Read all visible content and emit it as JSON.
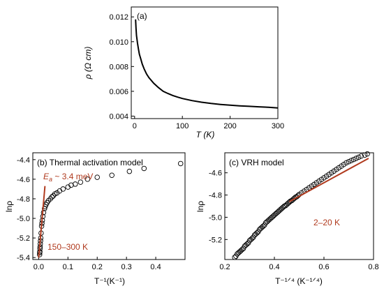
{
  "chart_data": [
    {
      "type": "line",
      "panel_label": "(a)",
      "xlabel": "T (K)",
      "ylabel": "ρ (Ω cm)",
      "xlim": [
        -7,
        300
      ],
      "ylim": [
        0.0038,
        0.0128
      ],
      "xticks": [
        0,
        100,
        200,
        300
      ],
      "xtick_labels": [
        "0",
        "100",
        "200",
        "300"
      ],
      "yticks": [
        0.004,
        0.006,
        0.008,
        0.01,
        0.012
      ],
      "ytick_labels": [
        "0.004",
        "0.006",
        "0.008",
        "0.010",
        "0.012"
      ],
      "color": "#000000",
      "series": [
        {
          "x": [
            2,
            3,
            4,
            6,
            8,
            10,
            13,
            16,
            20,
            25,
            30,
            40,
            50,
            60,
            70,
            80,
            90,
            100,
            120,
            140,
            160,
            180,
            200,
            220,
            240,
            260,
            280,
            300
          ],
          "y": [
            0.0118,
            0.0111,
            0.0105,
            0.0099,
            0.0094,
            0.009,
            0.0086,
            0.0082,
            0.0078,
            0.0074,
            0.0071,
            0.00665,
            0.0063,
            0.006,
            0.00582,
            0.00566,
            0.00553,
            0.00542,
            0.00525,
            0.00512,
            0.00502,
            0.00494,
            0.00488,
            0.00483,
            0.00479,
            0.00475,
            0.00471,
            0.00466
          ]
        }
      ]
    },
    {
      "type": "scatter",
      "panel_label": "(b) Thermal activation model",
      "xlabel": "T⁻¹(K⁻¹)",
      "ylabel": "lnρ",
      "xlim": [
        -0.02,
        0.5
      ],
      "ylim": [
        -5.42,
        -4.33
      ],
      "xticks": [
        0.0,
        0.1,
        0.2,
        0.3,
        0.4
      ],
      "xtick_labels": [
        "0.0",
        "0.1",
        "0.2",
        "0.3",
        "0.4"
      ],
      "yticks": [
        -5.4,
        -5.2,
        -5.0,
        -4.8,
        -4.6,
        -4.4
      ],
      "ytick_labels": [
        "-5.4",
        "-5.2",
        "-5.0",
        "-4.8",
        "-4.6",
        "-4.4"
      ],
      "marker_color": "#000000",
      "fit_color": "#b03a1e",
      "annotations": [
        {
          "text": "E",
          "sub": "a",
          "rest": " ~ 3.4 meV",
          "color": "#b03a1e"
        },
        {
          "text": "150–300 K",
          "color": "#b03a1e"
        }
      ],
      "series": [
        {
          "x": [
            0.0033,
            0.0036,
            0.004,
            0.0045,
            0.005,
            0.0056,
            0.0063,
            0.0071,
            0.0083,
            0.01,
            0.0111,
            0.0125,
            0.0143,
            0.0167,
            0.02,
            0.0222,
            0.025,
            0.0286,
            0.0333,
            0.04,
            0.0455,
            0.05,
            0.0556,
            0.0625,
            0.0714,
            0.0833,
            0.1,
            0.111,
            0.125,
            0.143,
            0.167,
            0.2,
            0.25,
            0.31,
            0.36,
            0.485
          ],
          "y": [
            -5.37,
            -5.35,
            -5.34,
            -5.31,
            -5.29,
            -5.26,
            -5.23,
            -5.2,
            -5.15,
            -5.08,
            -5.05,
            -5.02,
            -4.98,
            -4.94,
            -4.9,
            -4.88,
            -4.86,
            -4.84,
            -4.82,
            -4.8,
            -4.78,
            -4.77,
            -4.75,
            -4.74,
            -4.72,
            -4.7,
            -4.68,
            -4.66,
            -4.65,
            -4.63,
            -4.6,
            -4.58,
            -4.56,
            -4.52,
            -4.49,
            -4.44
          ]
        }
      ],
      "fit_line": {
        "x": [
          0.0,
          0.0215
        ],
        "y": [
          -5.4,
          -4.67
        ]
      }
    },
    {
      "type": "scatter",
      "panel_label": "(c) VRH model",
      "xlabel": "T⁻¹ᐟ⁴ (K⁻¹ᐟ⁴)",
      "ylabel": "lnρ",
      "xlim": [
        0.2,
        0.8
      ],
      "ylim": [
        -5.38,
        -4.42
      ],
      "xticks": [
        0.2,
        0.4,
        0.6,
        0.8
      ],
      "xtick_labels": [
        "0.2",
        "0.4",
        "0.6",
        "0.8"
      ],
      "yticks": [
        -5.2,
        -5.0,
        -4.8,
        -4.6
      ],
      "ytick_labels": [
        "-5.2",
        "-5.0",
        "-4.8",
        "-4.6"
      ],
      "marker_color": "#000000",
      "fit_color": "#b03a1e",
      "annotations": [
        {
          "text": "2–20 K",
          "color": "#b03a1e"
        }
      ],
      "series": [
        {
          "x": [
            0.24,
            0.245,
            0.25,
            0.255,
            0.26,
            0.265,
            0.27,
            0.275,
            0.28,
            0.285,
            0.29,
            0.295,
            0.3,
            0.305,
            0.31,
            0.315,
            0.32,
            0.325,
            0.33,
            0.335,
            0.34,
            0.345,
            0.35,
            0.355,
            0.36,
            0.365,
            0.37,
            0.375,
            0.38,
            0.385,
            0.39,
            0.395,
            0.4,
            0.405,
            0.41,
            0.415,
            0.42,
            0.425,
            0.43,
            0.435,
            0.44,
            0.445,
            0.45,
            0.455,
            0.46,
            0.465,
            0.47,
            0.475,
            0.48,
            0.485,
            0.49,
            0.495,
            0.5,
            0.51,
            0.52,
            0.53,
            0.54,
            0.55,
            0.56,
            0.57,
            0.58,
            0.59,
            0.6,
            0.61,
            0.62,
            0.63,
            0.64,
            0.65,
            0.66,
            0.67,
            0.68,
            0.69,
            0.7,
            0.71,
            0.72,
            0.73,
            0.74,
            0.75,
            0.765,
            0.775
          ],
          "y": [
            -5.36,
            -5.35,
            -5.33,
            -5.32,
            -5.31,
            -5.3,
            -5.29,
            -5.28,
            -5.26,
            -5.25,
            -5.24,
            -5.23,
            -5.21,
            -5.2,
            -5.19,
            -5.18,
            -5.16,
            -5.15,
            -5.14,
            -5.13,
            -5.11,
            -5.1,
            -5.09,
            -5.08,
            -5.07,
            -5.05,
            -5.04,
            -5.03,
            -5.02,
            -5.01,
            -5.0,
            -4.99,
            -4.98,
            -4.97,
            -4.96,
            -4.95,
            -4.94,
            -4.93,
            -4.92,
            -4.91,
            -4.9,
            -4.895,
            -4.885,
            -4.875,
            -4.865,
            -4.855,
            -4.85,
            -4.84,
            -4.83,
            -4.82,
            -4.815,
            -4.805,
            -4.795,
            -4.78,
            -4.765,
            -4.75,
            -4.735,
            -4.72,
            -4.705,
            -4.69,
            -4.675,
            -4.66,
            -4.645,
            -4.63,
            -4.615,
            -4.6,
            -4.585,
            -4.57,
            -4.555,
            -4.54,
            -4.525,
            -4.51,
            -4.5,
            -4.49,
            -4.48,
            -4.47,
            -4.46,
            -4.45,
            -4.44,
            -4.43
          ]
        }
      ],
      "fit_line": {
        "x": [
          0.46,
          0.78
        ],
        "y": [
          -4.86,
          -4.47
        ]
      }
    }
  ]
}
